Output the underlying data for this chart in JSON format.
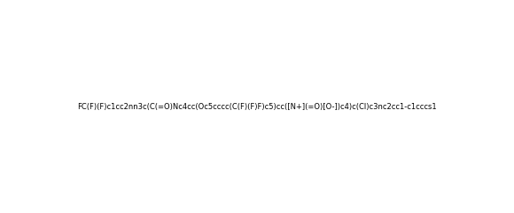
{
  "smiles": "FC(F)(F)c1cc2nn3c(C(=O)Nc4cc(Oc5cccc(C(F)(F)F)c5)cc([N+](=O)[O-])c4)c(Cl)c3nc2cc1-c1cccs1",
  "title": "",
  "bg_color": "#ffffff",
  "line_color": "#000000",
  "figsize": [
    5.8,
    2.4
  ],
  "dpi": 100
}
